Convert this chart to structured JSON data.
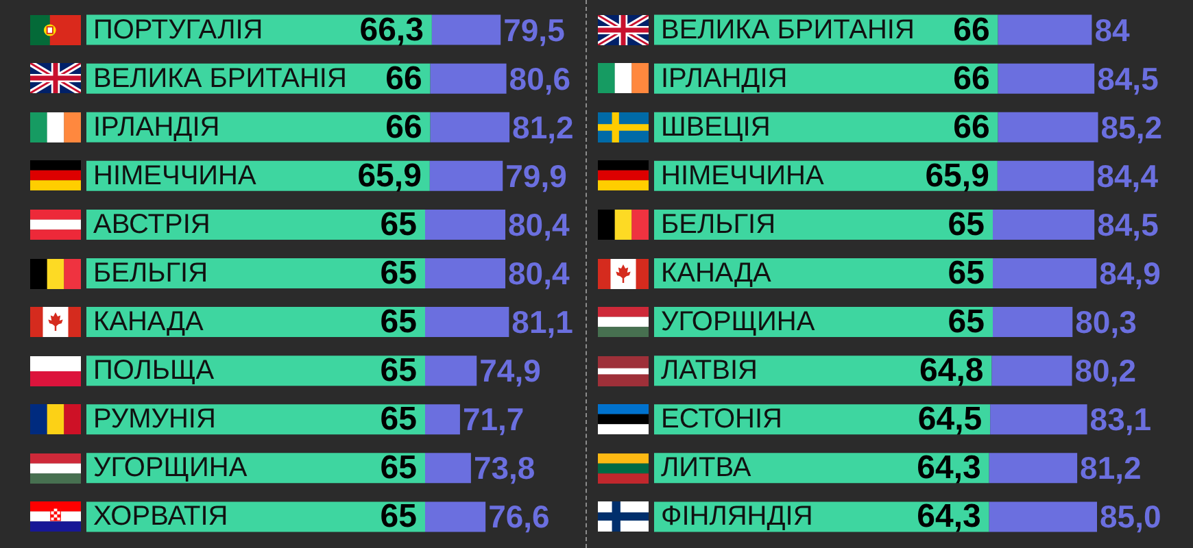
{
  "chart_data": [
    {
      "type": "bar",
      "orientation": "horizontal",
      "stacked": true,
      "tick_labels": "y",
      "categories": [
        "ПОРТУГАЛІЯ",
        "ВЕЛИКА БРИТАНІЯ",
        "ІРЛАНДІЯ",
        "НІМЕЧЧИНА",
        "АВСТРІЯ",
        "БЕЛЬГІЯ",
        "КАНАДА",
        "ПОЛЬЩА",
        "РУМУНІЯ",
        "УГОРЩИНА",
        "ХОРВАТІЯ"
      ],
      "series": [
        {
          "color": "#3ed6a0",
          "values": [
            66.3,
            66,
            66,
            65.9,
            65,
            65,
            65,
            65,
            65,
            65,
            65
          ],
          "value_labels": [
            "66,3",
            "66",
            "66",
            "65,9",
            "65",
            "65",
            "65",
            "65",
            "65",
            "65",
            "65"
          ]
        },
        {
          "color": "#6b6fdf",
          "values": [
            13.2,
            14.6,
            15.2,
            14,
            15.4,
            15.4,
            16.1,
            9.9,
            6.7,
            8.8,
            11.6
          ]
        }
      ],
      "totals": [
        "79,5",
        "80,6",
        "81,2",
        "79,9",
        "80,4",
        "80,4",
        "81,1",
        "74,9",
        "71,7",
        "73,8",
        "76,6"
      ]
    },
    {
      "type": "bar",
      "orientation": "horizontal",
      "stacked": true,
      "tick_labels": "y",
      "categories": [
        "ВЕЛИКА БРИТАНІЯ",
        "ІРЛАНДІЯ",
        "ШВЕЦІЯ",
        "НІМЕЧЧИНА",
        "БЕЛЬГІЯ",
        "КАНАДА",
        "УГОРЩИНА",
        "ЛАТВІЯ",
        "ЕСТОНІЯ",
        "ЛИТВА",
        "ФІНЛЯНДІЯ"
      ],
      "series": [
        {
          "color": "#3ed6a0",
          "values": [
            66,
            66,
            66,
            65.9,
            65,
            65,
            65,
            64.8,
            64.5,
            64.3,
            64.3
          ],
          "value_labels": [
            "66",
            "66",
            "66",
            "65,9",
            "65",
            "65",
            "65",
            "64,8",
            "64,5",
            "64,3",
            "64,3"
          ]
        },
        {
          "color": "#6b6fdf",
          "values": [
            18,
            18.5,
            19.2,
            18.5,
            19.5,
            19.9,
            15.3,
            15.4,
            18.6,
            16.9,
            20.7
          ]
        }
      ],
      "totals": [
        "84",
        "84,5",
        "85,2",
        "84,4",
        "84,5",
        "84,9",
        "80,3",
        "80,2",
        "83,1",
        "81,2",
        "85,0"
      ]
    }
  ]
}
